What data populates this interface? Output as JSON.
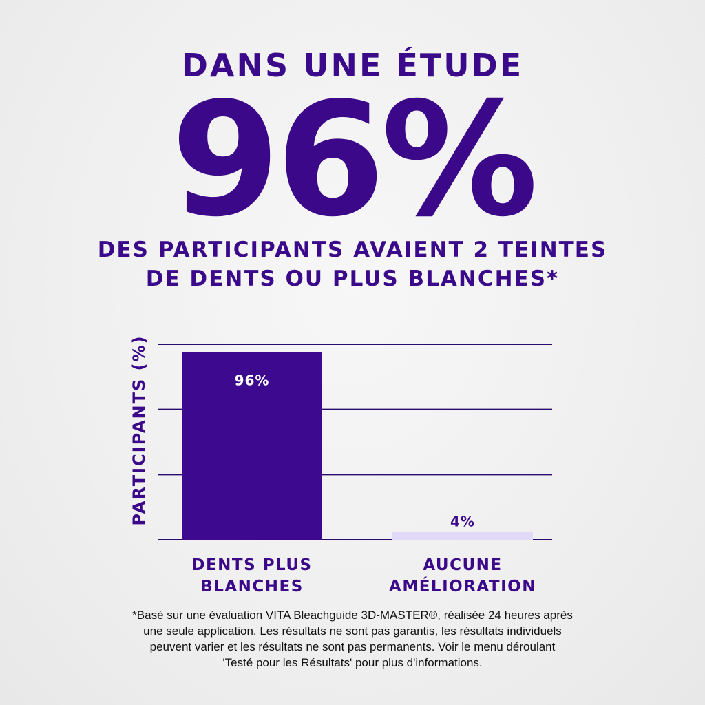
{
  "header": {
    "study_label": "DANS UNE ÉTUDE",
    "big_stat": "96%",
    "subheading_line1": "DES PARTICIPANTS AVAIENT 2 TEINTES",
    "subheading_line2": "DE DENTS OU PLUS BLANCHES*"
  },
  "colors": {
    "primary": "#3a0888",
    "bar_main": "#3d0a8f",
    "bar_light": "#e2d8f7",
    "grid": "#2a0b6e",
    "footnote": "#111111"
  },
  "chart_data": {
    "type": "bar",
    "title": "",
    "ylabel": "PARTICIPANTS (%)",
    "xlabel": "",
    "ylim": [
      0,
      100
    ],
    "grid": true,
    "gridlines": [
      0,
      33.3,
      66.7,
      100
    ],
    "categories": [
      {
        "line1": "DENTS PLUS",
        "line2": "BLANCHES"
      },
      {
        "line1": "AUCUNE",
        "line2": "AMÉLIORATION"
      }
    ],
    "values": [
      96,
      4
    ],
    "value_labels": [
      "96%",
      "4%"
    ]
  },
  "footnote": {
    "line1": "*Basé sur une évaluation VITA Bleachguide 3D-MASTER®, réalisée 24 heures après",
    "line2": "une seule application. Les résultats ne sont pas garantis, les résultats individuels",
    "line3": "peuvent varier et les résultats ne sont pas permanents. Voir le menu déroulant",
    "line4": "'Testé pour les Résultats' pour plus d'informations."
  }
}
